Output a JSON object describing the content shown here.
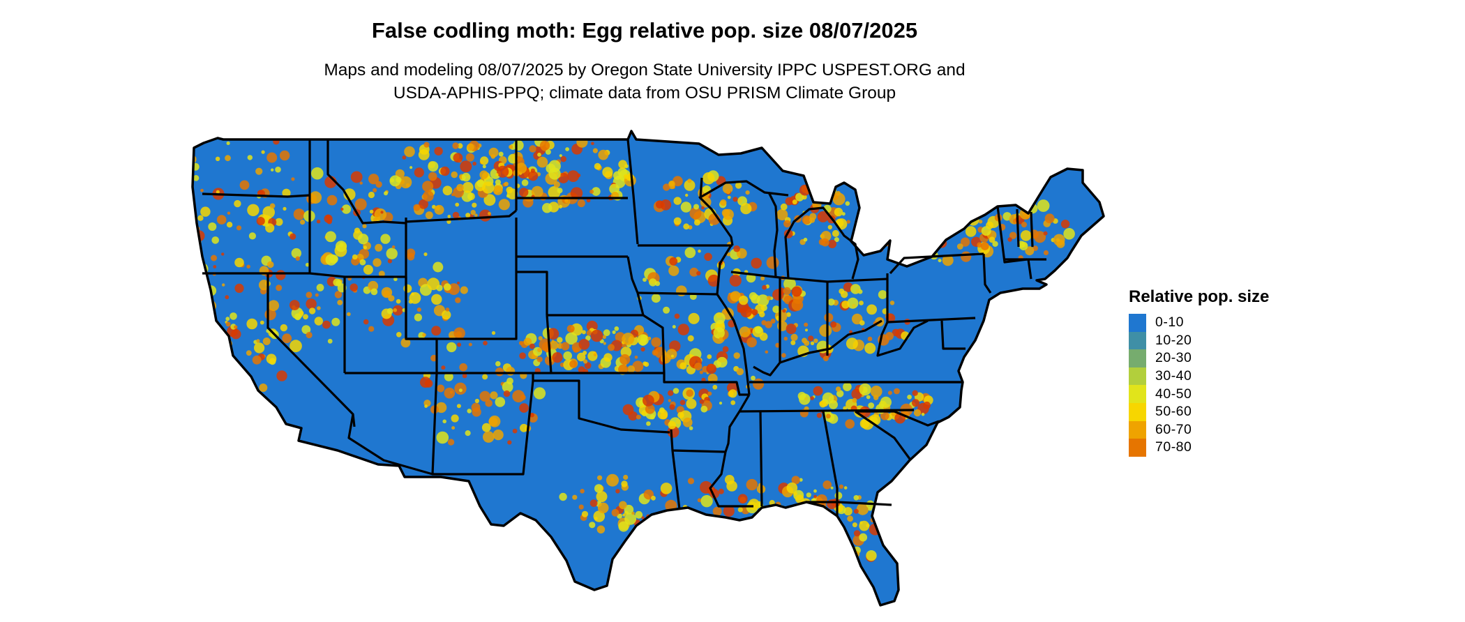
{
  "title": "False codling moth: Egg relative pop. size 08/07/2025",
  "subtitle_lines": [
    "Maps and modeling 08/07/2025 by Oregon State University IPPC USPEST.ORG and",
    "USDA-APHIS-PPQ; climate data from OSU PRISM Climate Group"
  ],
  "legend": {
    "title": "Relative pop. size",
    "items": [
      {
        "label": "0-10",
        "color": "#1f77d0"
      },
      {
        "label": "10-20",
        "color": "#3f8fa6"
      },
      {
        "label": "20-30",
        "color": "#76ac6e"
      },
      {
        "label": "30-40",
        "color": "#b2cf3c"
      },
      {
        "label": "40-50",
        "color": "#e1e41b"
      },
      {
        "label": "50-60",
        "color": "#f7d600"
      },
      {
        "label": "60-70",
        "color": "#efa300"
      },
      {
        "label": "70-80",
        "color": "#e67500"
      }
    ]
  },
  "map": {
    "region": "Contiguous United States",
    "base_color": "#1f77d0",
    "border_color": "#000000",
    "hotspot_colors": [
      "#f7d600",
      "#e1e41b",
      "#efa300",
      "#e67500",
      "#d93a00"
    ]
  }
}
